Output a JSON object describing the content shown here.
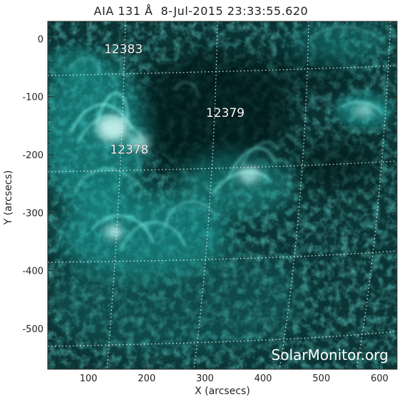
{
  "title": "AIA 131 Å  8-Jul-2015 23:33:55.620",
  "axes": {
    "xlabel": "X (arcsecs)",
    "ylabel": "Y (arcsecs)",
    "xrange": [
      30,
      630
    ],
    "yrange": [
      -570,
      30
    ],
    "xticks": [
      {
        "value": 100,
        "label": "100"
      },
      {
        "value": 200,
        "label": "200"
      },
      {
        "value": 300,
        "label": "300"
      },
      {
        "value": 400,
        "label": "400"
      },
      {
        "value": 500,
        "label": "500"
      },
      {
        "value": 600,
        "label": "600"
      }
    ],
    "yticks": [
      {
        "value": 0,
        "label": "0"
      },
      {
        "value": -100,
        "label": "-100"
      },
      {
        "value": -200,
        "label": "-200"
      },
      {
        "value": -300,
        "label": "-300"
      },
      {
        "value": -400,
        "label": "-400"
      },
      {
        "value": -500,
        "label": "-500"
      }
    ]
  },
  "regions": [
    {
      "label": "12383",
      "x": 160,
      "y": -25
    },
    {
      "label": "12379",
      "x": 335,
      "y": -135
    },
    {
      "label": "12378",
      "x": 170,
      "y": -198
    }
  ],
  "watermark": "SolarMonitor.org",
  "colors": {
    "background": "#0a2f2f",
    "emission": "#44e0d8",
    "bright": "#ccfffa",
    "grid": "#ffffff"
  }
}
